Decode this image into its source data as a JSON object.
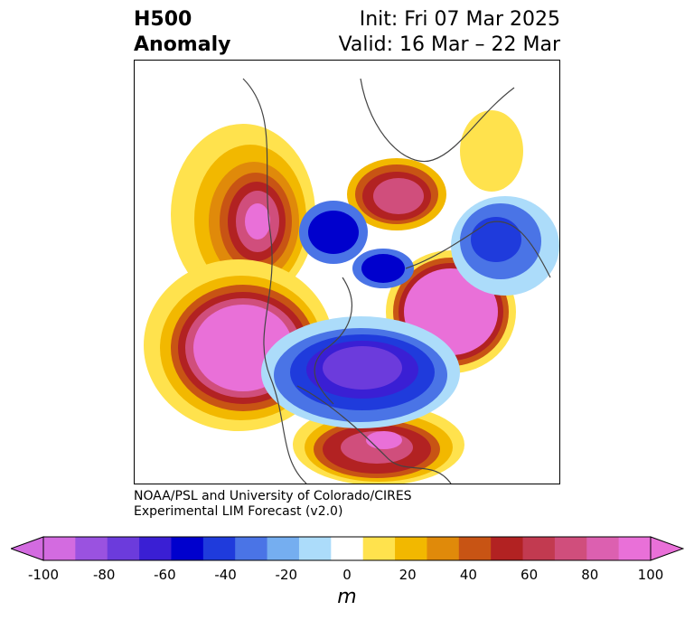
{
  "title": {
    "left_line1": "H500",
    "left_line2": "Anomaly",
    "right_line1": "Init: Fri 07 Mar 2025",
    "right_line2": "Valid: 16 Mar – 22 Mar"
  },
  "credit": {
    "line1": "NOAA/PSL and University of Colorado/CIRES",
    "line2": "Experimental LIM Forecast (v2.0)"
  },
  "colorbar": {
    "unit": "m",
    "ticks": [
      "-100",
      "-80",
      "-60",
      "-40",
      "-20",
      "0",
      "20",
      "40",
      "60",
      "80",
      "100"
    ],
    "levels": [
      -100,
      -90,
      -80,
      -70,
      -60,
      -50,
      -40,
      -30,
      -20,
      -10,
      10,
      20,
      30,
      40,
      50,
      60,
      70,
      80,
      90,
      100
    ],
    "colors": [
      "#d36be0",
      "#9a52e0",
      "#6c3bdc",
      "#3a1fd4",
      "#0000cd",
      "#1f3bdc",
      "#4a74e6",
      "#75aef0",
      "#acdcfa",
      "#ffffff",
      "#ffe24d",
      "#f2b800",
      "#e08a0a",
      "#c85414",
      "#b22222",
      "#c23a50",
      "#d04e7c",
      "#dc60b0",
      "#e970d8"
    ]
  },
  "map": {
    "projection": "north polar stereographic",
    "anomalies": [
      {
        "region": "western North America",
        "sign": "positive",
        "peak": 80
      },
      {
        "region": "Greenland / Arctic",
        "sign": "positive",
        "peak": 80
      },
      {
        "region": "North Atlantic / Europe",
        "sign": "positive",
        "peak": 100
      },
      {
        "region": "North Pacific",
        "sign": "positive",
        "peak": 100
      },
      {
        "region": "North Africa",
        "sign": "positive",
        "peak": 80
      },
      {
        "region": "Siberia",
        "sign": "positive",
        "peak": 20
      },
      {
        "region": "Siberia / Kamchatka",
        "sign": "negative",
        "peak": -60
      },
      {
        "region": "Bering / Alaska",
        "sign": "negative",
        "peak": -60
      },
      {
        "region": "Arctic Ocean",
        "sign": "negative",
        "peak": -70
      },
      {
        "region": "Central Asia / Middle East",
        "sign": "negative",
        "peak": -90
      }
    ]
  }
}
